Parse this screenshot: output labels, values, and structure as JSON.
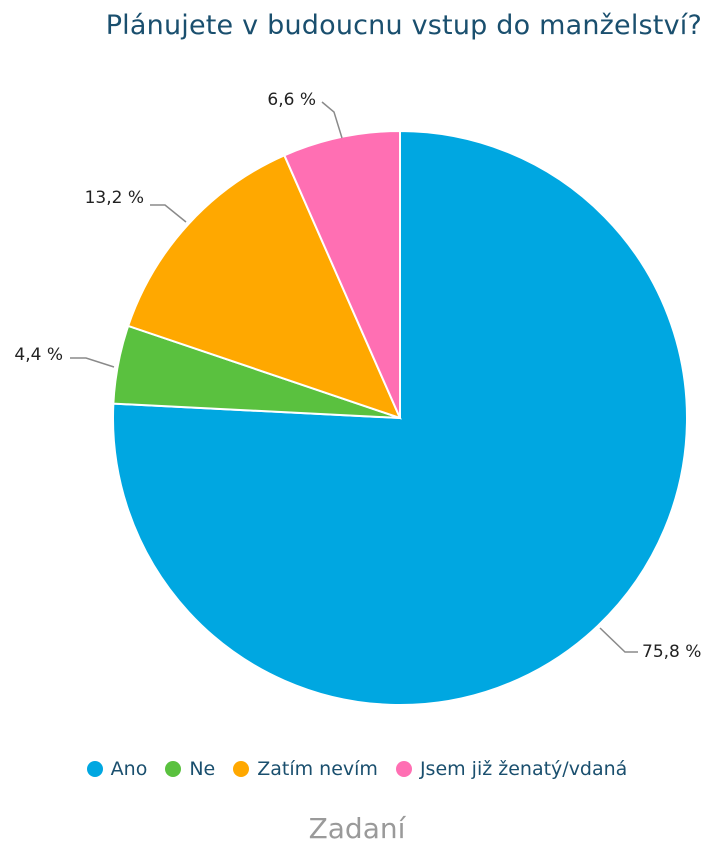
{
  "chart_data": {
    "type": "pie",
    "title": "Plánujete v budoucnu vstup do manželství?",
    "slices": [
      {
        "name": "Ano",
        "value": 75.8,
        "label": "75,8 %",
        "color": "#00a7e1"
      },
      {
        "name": "Ne",
        "value": 4.4,
        "label": "4,4 %",
        "color": "#5ac13f"
      },
      {
        "name": "Zatím nevím",
        "value": 13.2,
        "label": "13,2 %",
        "color": "#ffa800"
      },
      {
        "name": "Jsem již ženatý/vdaná",
        "value": 6.6,
        "label": "6,6 %",
        "color": "#ff6fb3"
      }
    ],
    "start_angle": "12 o'clock, clockwise",
    "legend_position": "bottom"
  },
  "footer": "Zadaní"
}
